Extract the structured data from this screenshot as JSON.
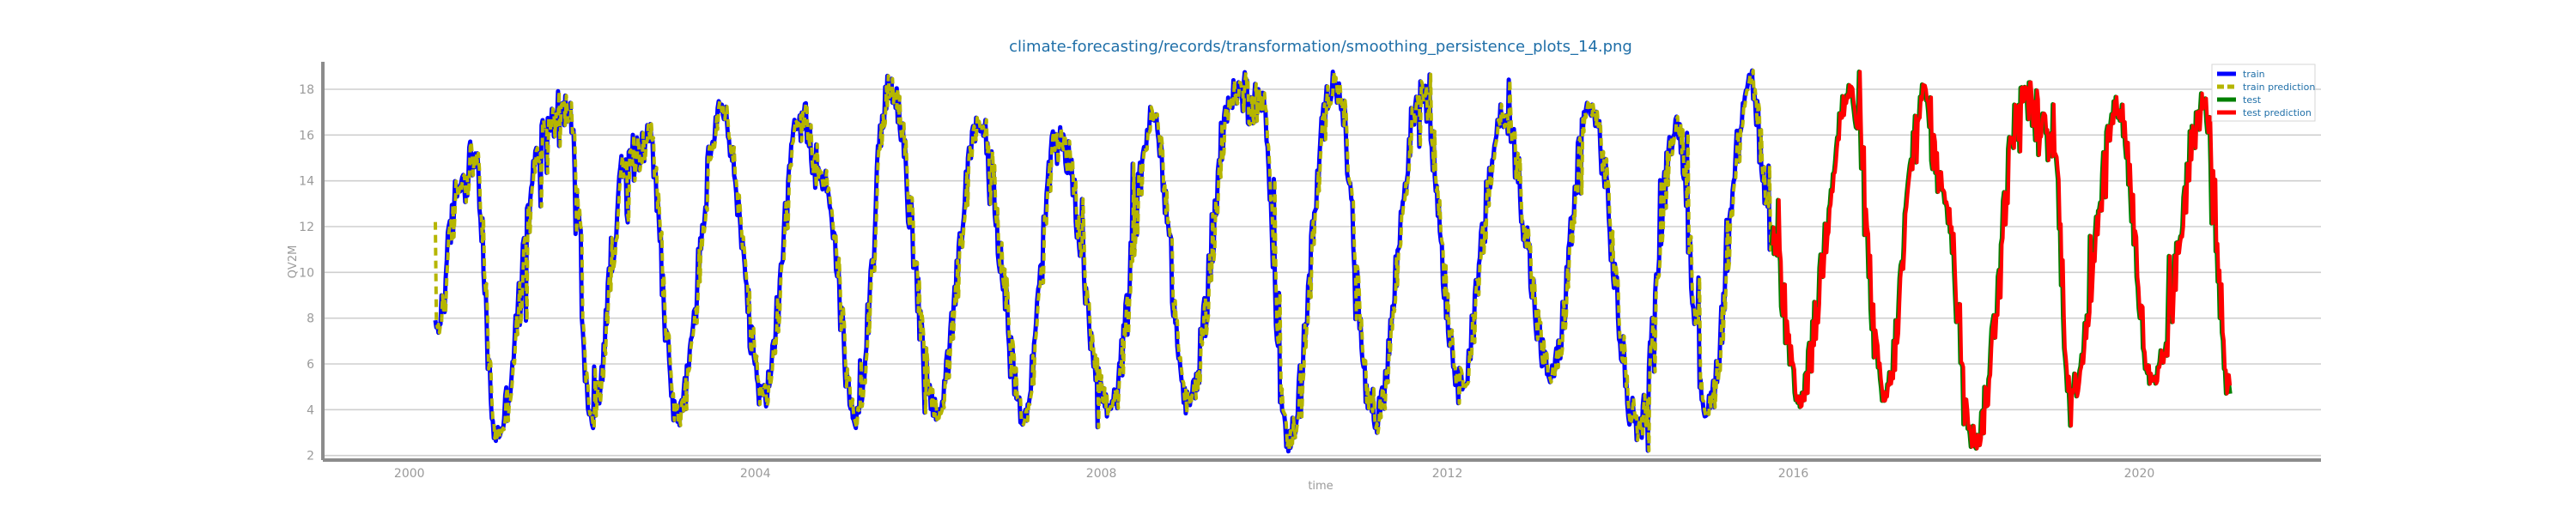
{
  "chart_data": {
    "type": "line",
    "title": "climate-forecasting/records/transformation/smoothing_persistence_plots_14.png",
    "xlabel": "time",
    "ylabel": "QV2M",
    "xlim": [
      1999.0,
      2022.1
    ],
    "ylim": [
      1.8,
      19.2
    ],
    "x_ticks": [
      2000,
      2004,
      2008,
      2012,
      2016,
      2020
    ],
    "x_tick_labels": [
      "2000",
      "2004",
      "2008",
      "2012",
      "2016",
      "2020"
    ],
    "y_ticks": [
      2,
      4,
      6,
      8,
      10,
      12,
      14,
      16,
      18
    ],
    "y_tick_labels": [
      "2",
      "4",
      "6",
      "8",
      "10",
      "12",
      "14",
      "16",
      "18"
    ],
    "grid": "horizontal",
    "legend_position": "top-right",
    "train_end_year": 2015.75,
    "series": [
      {
        "name": "train",
        "color": "#0000ff",
        "dash": "solid",
        "peaks": [
          [
            2000.3,
            7.5
          ],
          [
            2000.6,
            14.0
          ],
          [
            2000.75,
            15.0
          ],
          [
            2001.0,
            2.9
          ],
          [
            2001.6,
            16.5
          ],
          [
            2001.85,
            17.0
          ],
          [
            2002.1,
            3.5
          ],
          [
            2002.5,
            14.5
          ],
          [
            2002.75,
            16.2
          ],
          [
            2003.1,
            3.7
          ],
          [
            2003.6,
            17.0
          ],
          [
            2004.1,
            4.5
          ],
          [
            2004.5,
            16.8
          ],
          [
            2004.8,
            14.0
          ],
          [
            2005.15,
            3.7
          ],
          [
            2005.55,
            18.1
          ],
          [
            2006.1,
            4.0
          ],
          [
            2006.6,
            16.5
          ],
          [
            2007.1,
            3.8
          ],
          [
            2007.5,
            16.0
          ],
          [
            2008.1,
            4.0
          ],
          [
            2008.6,
            16.8
          ],
          [
            2009.0,
            4.3
          ],
          [
            2009.55,
            17.9
          ],
          [
            2009.85,
            17.5
          ],
          [
            2010.15,
            2.6
          ],
          [
            2010.7,
            18.5
          ],
          [
            2011.15,
            3.4
          ],
          [
            2011.7,
            17.9
          ],
          [
            2012.15,
            5.3
          ],
          [
            2012.65,
            16.8
          ],
          [
            2013.2,
            5.5
          ],
          [
            2013.65,
            17.2
          ],
          [
            2014.2,
            3.1
          ],
          [
            2014.65,
            16.5
          ],
          [
            2015.0,
            4.0
          ],
          [
            2015.5,
            18.5
          ],
          [
            2015.75,
            11.5
          ]
        ]
      },
      {
        "name": "train prediction",
        "color": "#b5b500",
        "dash": "dashed",
        "first_value": 12.2
      },
      {
        "name": "test",
        "color": "#008000",
        "dash": "solid",
        "peaks": [
          [
            2015.75,
            11.5
          ],
          [
            2016.05,
            4.5
          ],
          [
            2016.65,
            17.8
          ],
          [
            2017.05,
            4.5
          ],
          [
            2017.5,
            17.8
          ],
          [
            2017.7,
            14.0
          ],
          [
            2018.1,
            2.7
          ],
          [
            2018.65,
            17.7
          ],
          [
            2019.0,
            15.5
          ],
          [
            2019.2,
            4.8
          ],
          [
            2019.75,
            17.2
          ],
          [
            2020.15,
            5.0
          ],
          [
            2020.75,
            17.2
          ],
          [
            2021.05,
            4.7
          ]
        ]
      },
      {
        "name": "test prediction",
        "color": "#ff0000",
        "dash": "solid"
      }
    ]
  }
}
